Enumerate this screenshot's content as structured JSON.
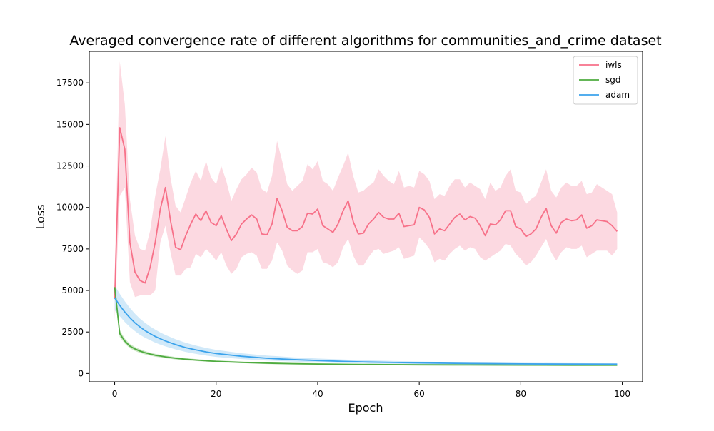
{
  "chart_data": {
    "type": "line",
    "title": "Averaged convergence rate of different algorithms for communities_and_crime dataset",
    "xlabel": "Epoch",
    "ylabel": "Loss",
    "xlim": [
      -5,
      104
    ],
    "ylim": [
      -500,
      19400
    ],
    "xticks": [
      0,
      20,
      40,
      60,
      80,
      100
    ],
    "yticks": [
      0,
      2500,
      5000,
      7500,
      10000,
      12500,
      15000,
      17500
    ],
    "grid": false,
    "legend_position": "upper right",
    "series": [
      {
        "name": "iwls",
        "color": "#f77189",
        "band_color": "#fbd0d9",
        "x": [
          0,
          1,
          2,
          3,
          4,
          5,
          6,
          7,
          8,
          9,
          10,
          11,
          12,
          13,
          14,
          15,
          16,
          17,
          18,
          19,
          20,
          21,
          22,
          23,
          24,
          25,
          26,
          27,
          28,
          29,
          30,
          31,
          32,
          33,
          34,
          35,
          36,
          37,
          38,
          39,
          40,
          41,
          42,
          43,
          44,
          45,
          46,
          47,
          48,
          49,
          50,
          51,
          52,
          53,
          54,
          55,
          56,
          57,
          58,
          59,
          60,
          61,
          62,
          63,
          64,
          65,
          66,
          67,
          68,
          69,
          70,
          71,
          72,
          73,
          74,
          75,
          76,
          77,
          78,
          79,
          80,
          81,
          82,
          83,
          84,
          85,
          86,
          87,
          88,
          89,
          90,
          91,
          92,
          93,
          94,
          95,
          96,
          97,
          98,
          99
        ],
        "values": [
          4500,
          14800,
          13500,
          7900,
          6100,
          5600,
          5450,
          6400,
          7900,
          9900,
          11200,
          9200,
          7600,
          7450,
          8300,
          9000,
          9600,
          9200,
          9800,
          9100,
          8900,
          9500,
          8700,
          8000,
          8400,
          9000,
          9300,
          9550,
          9300,
          8400,
          8350,
          9000,
          10550,
          9800,
          8800,
          8600,
          8600,
          8850,
          9650,
          9600,
          9900,
          8900,
          8700,
          8500,
          9000,
          9800,
          10400,
          9150,
          8400,
          8450,
          9000,
          9300,
          9700,
          9400,
          9300,
          9300,
          9650,
          8850,
          8900,
          8950,
          10000,
          9850,
          9400,
          8400,
          8700,
          8600,
          9000,
          9400,
          9600,
          9250,
          9450,
          9350,
          8900,
          8300,
          9000,
          8950,
          9250,
          9800,
          9800,
          8850,
          8700,
          8250,
          8400,
          8700,
          9400,
          9950,
          8900,
          8450,
          9100,
          9300,
          9200,
          9250,
          9550,
          8750,
          8900,
          9250,
          9200,
          9150,
          8900,
          8550
        ],
        "upper": [
          6000,
          18800,
          16200,
          10500,
          8300,
          7500,
          7400,
          8600,
          10700,
          12300,
          14300,
          11800,
          10100,
          9700,
          10600,
          11500,
          12200,
          11600,
          12800,
          11800,
          11400,
          12500,
          11600,
          10400,
          11100,
          11700,
          12000,
          12400,
          12100,
          11100,
          10900,
          11900,
          14000,
          12800,
          11400,
          11000,
          11300,
          11600,
          12600,
          12300,
          12800,
          11600,
          11400,
          11000,
          11800,
          12500,
          13300,
          11900,
          10900,
          11000,
          11300,
          11500,
          12300,
          11900,
          11600,
          11400,
          12200,
          11200,
          11300,
          11200,
          12200,
          12000,
          11600,
          10500,
          10800,
          10700,
          11300,
          11700,
          11700,
          11200,
          11500,
          11300,
          11100,
          10500,
          11500,
          11000,
          11200,
          11900,
          12300,
          11000,
          10900,
          10200,
          10500,
          10700,
          11500,
          12300,
          11000,
          10600,
          11200,
          11500,
          11300,
          11300,
          11600,
          10800,
          10900,
          11400,
          11200,
          11000,
          10800,
          9700
        ],
        "lower": [
          3200,
          10700,
          11200,
          5500,
          4600,
          4700,
          4700,
          4700,
          5000,
          7900,
          8900,
          7300,
          5900,
          5900,
          6300,
          6400,
          7200,
          7000,
          7500,
          7200,
          6800,
          7300,
          6500,
          6000,
          6300,
          7000,
          7200,
          7300,
          7100,
          6300,
          6300,
          6800,
          7900,
          7400,
          6500,
          6200,
          6000,
          6200,
          7300,
          7300,
          7500,
          6700,
          6600,
          6400,
          6700,
          7600,
          8100,
          7100,
          6500,
          6500,
          7000,
          7400,
          7500,
          7200,
          7300,
          7400,
          7600,
          6900,
          7000,
          7100,
          8200,
          7900,
          7500,
          6700,
          6900,
          6800,
          7200,
          7500,
          7700,
          7400,
          7600,
          7500,
          7000,
          6800,
          7000,
          7200,
          7400,
          7800,
          7700,
          7200,
          6900,
          6500,
          6700,
          7100,
          7600,
          8100,
          7300,
          6800,
          7300,
          7600,
          7500,
          7500,
          7700,
          7000,
          7200,
          7400,
          7400,
          7400,
          7100,
          7500
        ]
      },
      {
        "name": "sgd",
        "color": "#4eab3f",
        "band_color": "#bfe1b5",
        "x": [
          0,
          1,
          2,
          3,
          4,
          5,
          6,
          7,
          8,
          9,
          10,
          12,
          14,
          16,
          18,
          20,
          25,
          30,
          35,
          40,
          45,
          50,
          60,
          70,
          80,
          90,
          99
        ],
        "values": [
          5200,
          2400,
          1950,
          1650,
          1480,
          1350,
          1250,
          1170,
          1100,
          1050,
          1000,
          920,
          860,
          810,
          770,
          730,
          670,
          620,
          590,
          570,
          555,
          540,
          525,
          515,
          505,
          500,
          500
        ],
        "upper": [
          5500,
          2600,
          2100,
          1780,
          1600,
          1460,
          1350,
          1260,
          1190,
          1130,
          1080,
          990,
          930,
          870,
          830,
          790,
          720,
          670,
          640,
          620,
          600,
          585,
          565,
          555,
          545,
          540,
          540
        ],
        "lower": [
          4900,
          2200,
          1800,
          1520,
          1360,
          1240,
          1150,
          1080,
          1010,
          970,
          920,
          850,
          790,
          750,
          710,
          670,
          620,
          570,
          540,
          520,
          510,
          495,
          485,
          475,
          465,
          460,
          460
        ]
      },
      {
        "name": "adam",
        "color": "#3ba3ec",
        "band_color": "#c5e3f8",
        "x": [
          0,
          1,
          2,
          3,
          4,
          5,
          6,
          7,
          8,
          9,
          10,
          12,
          14,
          16,
          18,
          20,
          25,
          30,
          35,
          40,
          45,
          50,
          60,
          70,
          80,
          90,
          99
        ],
        "values": [
          4550,
          4100,
          3700,
          3350,
          3050,
          2800,
          2580,
          2400,
          2230,
          2090,
          1960,
          1740,
          1560,
          1420,
          1300,
          1200,
          1040,
          920,
          840,
          780,
          730,
          690,
          640,
          600,
          580,
          565,
          560
        ],
        "upper": [
          5300,
          4800,
          4350,
          3950,
          3600,
          3300,
          3050,
          2830,
          2640,
          2470,
          2320,
          2060,
          1850,
          1680,
          1540,
          1420,
          1220,
          1080,
          980,
          900,
          840,
          790,
          720,
          670,
          640,
          620,
          610
        ],
        "lower": [
          3800,
          3450,
          3100,
          2800,
          2550,
          2330,
          2150,
          2000,
          1860,
          1740,
          1630,
          1450,
          1300,
          1180,
          1080,
          1000,
          870,
          780,
          720,
          670,
          630,
          600,
          560,
          530,
          515,
          505,
          500
        ]
      }
    ]
  }
}
